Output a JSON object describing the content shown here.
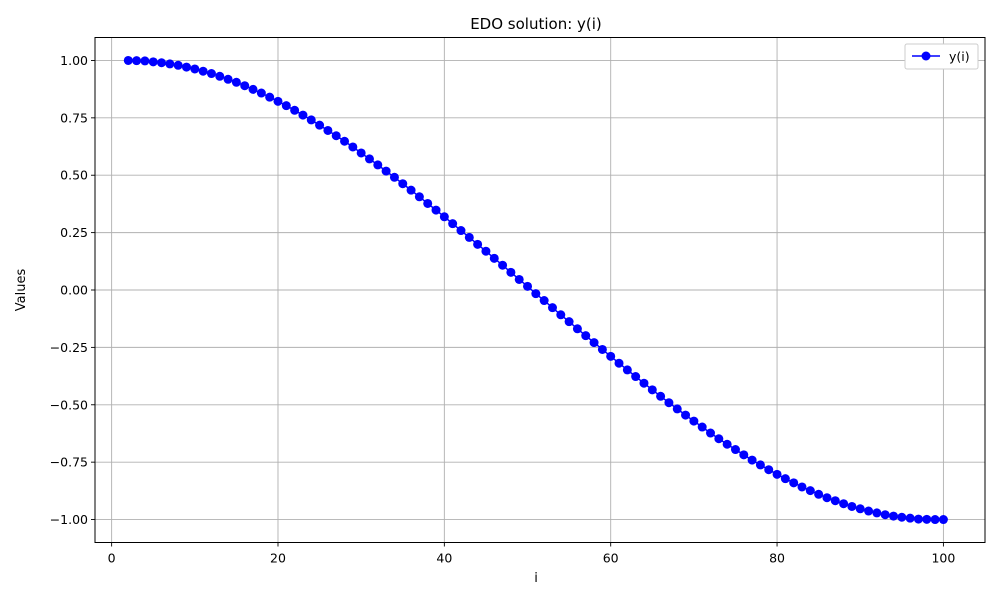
{
  "chart_data": {
    "type": "line",
    "title": "EDO solution: y(i)",
    "xlabel": "i",
    "ylabel": "Values",
    "xlim": [
      -2,
      105
    ],
    "ylim": [
      -1.1,
      1.1
    ],
    "x_ticks": [
      0,
      20,
      40,
      60,
      80,
      100
    ],
    "y_ticks": [
      -1.0,
      -0.75,
      -0.5,
      -0.25,
      0.0,
      0.25,
      0.5,
      0.75,
      1.0
    ],
    "x_tick_labels": [
      "0",
      "20",
      "40",
      "60",
      "80",
      "100"
    ],
    "y_tick_labels": [
      "−1.00",
      "−0.75",
      "−0.50",
      "−0.25",
      "0.00",
      "0.25",
      "0.50",
      "0.75",
      "1.00"
    ],
    "grid": true,
    "legend_position": "top-right",
    "series": [
      {
        "name": "y(i)",
        "color": "#0000ff",
        "marker": "circle",
        "x": [
          2,
          3,
          4,
          5,
          6,
          7,
          8,
          9,
          10,
          11,
          12,
          13,
          14,
          15,
          16,
          17,
          18,
          19,
          20,
          21,
          22,
          23,
          24,
          25,
          26,
          27,
          28,
          29,
          30,
          31,
          32,
          33,
          34,
          35,
          36,
          37,
          38,
          39,
          40,
          41,
          42,
          43,
          44,
          45,
          46,
          47,
          48,
          49,
          50,
          51,
          52,
          53,
          54,
          55,
          56,
          57,
          58,
          59,
          60,
          61,
          62,
          63,
          64,
          65,
          66,
          67,
          68,
          69,
          70,
          71,
          72,
          73,
          74,
          75,
          76,
          77,
          78,
          79,
          80,
          81,
          82,
          83,
          84,
          85,
          86,
          87,
          88,
          89,
          90,
          91,
          92,
          93,
          94,
          95,
          96,
          97,
          98,
          99,
          100
        ],
        "y": [
          1.0,
          0.999,
          0.998,
          0.994,
          0.99,
          0.985,
          0.979,
          0.971,
          0.963,
          0.953,
          0.943,
          0.931,
          0.918,
          0.905,
          0.89,
          0.874,
          0.858,
          0.84,
          0.822,
          0.803,
          0.783,
          0.762,
          0.741,
          0.718,
          0.695,
          0.672,
          0.648,
          0.623,
          0.597,
          0.571,
          0.545,
          0.518,
          0.491,
          0.463,
          0.435,
          0.406,
          0.377,
          0.348,
          0.319,
          0.289,
          0.259,
          0.229,
          0.199,
          0.169,
          0.138,
          0.108,
          0.077,
          0.046,
          0.016,
          -0.016,
          -0.046,
          -0.077,
          -0.108,
          -0.138,
          -0.169,
          -0.199,
          -0.229,
          -0.259,
          -0.289,
          -0.319,
          -0.348,
          -0.377,
          -0.406,
          -0.435,
          -0.463,
          -0.491,
          -0.518,
          -0.545,
          -0.571,
          -0.597,
          -0.623,
          -0.648,
          -0.672,
          -0.695,
          -0.718,
          -0.741,
          -0.762,
          -0.783,
          -0.803,
          -0.822,
          -0.84,
          -0.858,
          -0.874,
          -0.89,
          -0.905,
          -0.918,
          -0.931,
          -0.943,
          -0.953,
          -0.963,
          -0.971,
          -0.979,
          -0.985,
          -0.99,
          -0.994,
          -0.998,
          -0.999,
          -1.0,
          -1.0
        ]
      }
    ]
  }
}
